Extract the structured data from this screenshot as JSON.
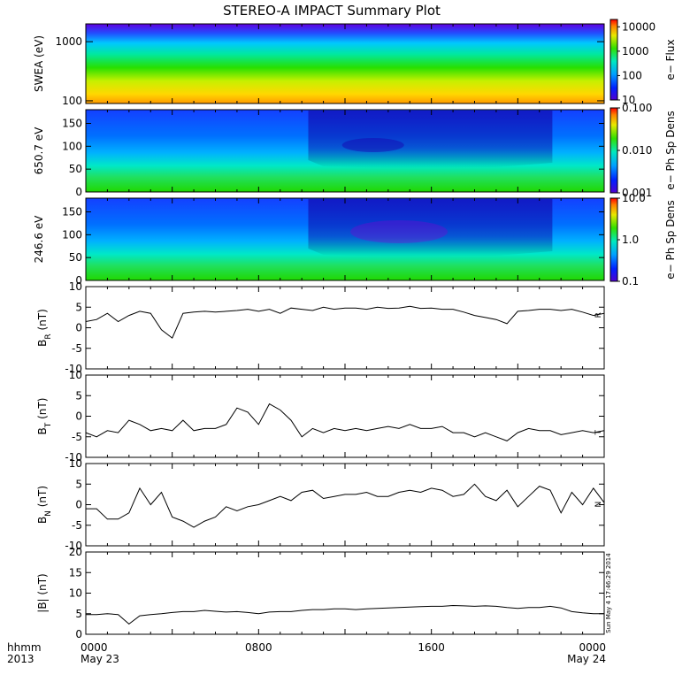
{
  "chart_data": {
    "type": "line",
    "title": "STEREO-A IMPACT Summary Plot",
    "colors": {
      "trace": "#000000",
      "frame": "#000000",
      "background": "#ffffff",
      "colorbar_top": "#ff0000",
      "colorbar_bottom": "#0000ff"
    },
    "x_axis": {
      "corner_labels": [
        "hhmm",
        "2013"
      ],
      "ticks": [
        {
          "hours": 0,
          "time": "0000",
          "date": "May 23"
        },
        {
          "hours": 8,
          "time": "0800",
          "date": ""
        },
        {
          "hours": 16,
          "time": "1600",
          "date": ""
        },
        {
          "hours": 24,
          "time": "0000",
          "date": "May 24"
        }
      ],
      "range_hours": [
        0,
        24
      ]
    },
    "spectrograms": [
      {
        "id": "swea",
        "type": "heatmap",
        "ylabel": "SWEA (eV)",
        "yscale": "log",
        "ylim": [
          90,
          2000
        ],
        "y_ticks": [
          "1000",
          "100"
        ],
        "colorbar": {
          "label": "e− Flux",
          "scale": "log",
          "range": [
            10,
            20000
          ],
          "ticks": [
            "10000",
            "1000",
            "100",
            "10"
          ]
        }
      },
      {
        "id": "pad650",
        "type": "heatmap",
        "ylabel": "650.7 eV",
        "yscale": "linear",
        "ylim": [
          0,
          180
        ],
        "y_ticks": [
          "150",
          "100",
          "50",
          "0"
        ],
        "colorbar": {
          "label": "e− Ph Sp Dens",
          "scale": "log",
          "range": [
            0.001,
            0.1
          ],
          "ticks": [
            "0.100",
            "0.010",
            "0.001"
          ]
        }
      },
      {
        "id": "pad246",
        "type": "heatmap",
        "ylabel": "246.6 eV",
        "yscale": "linear",
        "ylim": [
          0,
          180
        ],
        "y_ticks": [
          "150",
          "100",
          "50",
          "0"
        ],
        "colorbar": {
          "label": "e− Ph Sp Dens",
          "scale": "log",
          "range": [
            0.1,
            10
          ],
          "ticks": [
            "10.0",
            "1.0",
            "0.1"
          ]
        }
      }
    ],
    "line_panels": [
      {
        "id": "br",
        "ylabel": "B",
        "ylabel_sub": "R",
        "ylabel_unit": " (nT)",
        "ylim": [
          -10,
          10
        ],
        "y_ticks": [
          10,
          5,
          0,
          -5,
          -10
        ],
        "edge_label": "R",
        "x": [
          0,
          0.5,
          1,
          1.5,
          2,
          2.5,
          3,
          3.5,
          4,
          4.5,
          5,
          5.5,
          6,
          6.5,
          7,
          7.5,
          8,
          8.5,
          9,
          9.5,
          10,
          10.5,
          11,
          11.5,
          12,
          12.5,
          13,
          13.5,
          14,
          14.5,
          15,
          15.5,
          16,
          16.5,
          17,
          17.5,
          18,
          18.5,
          19,
          19.5,
          20,
          20.5,
          21,
          21.5,
          22,
          22.5,
          23,
          23.5,
          24
        ],
        "y": [
          1.5,
          2,
          3.5,
          1.5,
          3,
          4,
          3.5,
          -0.5,
          -2.5,
          3.5,
          3.8,
          4,
          3.8,
          4,
          4.2,
          4.5,
          4,
          4.5,
          3.5,
          4.8,
          4.5,
          4.2,
          5,
          4.5,
          4.8,
          4.8,
          4.5,
          5,
          4.7,
          4.8,
          5.2,
          4.7,
          4.8,
          4.5,
          4.5,
          3.8,
          3,
          2.5,
          2,
          1,
          4,
          4.2,
          4.5,
          4.5,
          4.2,
          4.5,
          3.8,
          3,
          3.5
        ]
      },
      {
        "id": "bt",
        "ylabel": "B",
        "ylabel_sub": "T",
        "ylabel_unit": " (nT)",
        "ylim": [
          -10,
          10
        ],
        "y_ticks": [
          10,
          5,
          0,
          -5,
          -10
        ],
        "edge_label": "T",
        "x": [
          0,
          0.5,
          1,
          1.5,
          2,
          2.5,
          3,
          3.5,
          4,
          4.5,
          5,
          5.5,
          6,
          6.5,
          7,
          7.5,
          8,
          8.5,
          9,
          9.5,
          10,
          10.5,
          11,
          11.5,
          12,
          12.5,
          13,
          13.5,
          14,
          14.5,
          15,
          15.5,
          16,
          16.5,
          17,
          17.5,
          18,
          18.5,
          19,
          19.5,
          20,
          20.5,
          21,
          21.5,
          22,
          22.5,
          23,
          23.5,
          24
        ],
        "y": [
          -4,
          -5,
          -3.5,
          -4,
          -1,
          -2,
          -3.5,
          -3,
          -3.5,
          -1,
          -3.5,
          -3,
          -3,
          -2,
          2,
          1,
          -2,
          3,
          1.5,
          -1,
          -5,
          -3,
          -4,
          -3,
          -3.5,
          -3,
          -3.5,
          -3,
          -2.5,
          -3,
          -2,
          -3,
          -3,
          -2.5,
          -4,
          -4,
          -5,
          -4,
          -5,
          -6,
          -4,
          -3,
          -3.5,
          -3.5,
          -4.5,
          -4,
          -3.5,
          -4,
          -3.5
        ]
      },
      {
        "id": "bn",
        "ylabel": "B",
        "ylabel_sub": "N",
        "ylabel_unit": " (nT)",
        "ylim": [
          -10,
          10
        ],
        "y_ticks": [
          10,
          5,
          0,
          -5,
          -10
        ],
        "edge_label": "N",
        "x": [
          0,
          0.5,
          1,
          1.5,
          2,
          2.5,
          3,
          3.5,
          4,
          4.5,
          5,
          5.5,
          6,
          6.5,
          7,
          7.5,
          8,
          8.5,
          9,
          9.5,
          10,
          10.5,
          11,
          11.5,
          12,
          12.5,
          13,
          13.5,
          14,
          14.5,
          15,
          15.5,
          16,
          16.5,
          17,
          17.5,
          18,
          18.5,
          19,
          19.5,
          20,
          20.5,
          21,
          21.5,
          22,
          22.5,
          23,
          23.5,
          24
        ],
        "y": [
          -1,
          -1,
          -3.5,
          -3.5,
          -2,
          4,
          0,
          3,
          -3,
          -4,
          -5.5,
          -4,
          -3,
          -0.5,
          -1.5,
          -0.5,
          0,
          1,
          2,
          1,
          3,
          3.5,
          1.5,
          2,
          2.5,
          2.5,
          3,
          2,
          2,
          3,
          3.5,
          3,
          4,
          3.5,
          2,
          2.5,
          5,
          2,
          1,
          3.5,
          -0.5,
          2,
          4.5,
          3.5,
          -2,
          3,
          0,
          4,
          0.5
        ]
      },
      {
        "id": "bmag",
        "ylabel": "|B| (nT)",
        "ylabel_sub": "",
        "ylabel_unit": "",
        "ylim": [
          0,
          20
        ],
        "y_ticks": [
          20,
          15,
          10,
          5,
          0
        ],
        "edge_label": "Sun May  4 17:46:29 2014",
        "x": [
          0,
          0.5,
          1,
          1.5,
          2,
          2.5,
          3,
          3.5,
          4,
          4.5,
          5,
          5.5,
          6,
          6.5,
          7,
          7.5,
          8,
          8.5,
          9,
          9.5,
          10,
          10.5,
          11,
          11.5,
          12,
          12.5,
          13,
          13.5,
          14,
          14.5,
          15,
          15.5,
          16,
          16.5,
          17,
          17.5,
          18,
          18.5,
          19,
          19.5,
          20,
          20.5,
          21,
          21.5,
          22,
          22.5,
          23,
          23.5,
          24
        ],
        "y": [
          4.8,
          4.8,
          5,
          4.8,
          2.5,
          4.5,
          4.8,
          5,
          5.3,
          5.5,
          5.5,
          5.8,
          5.6,
          5.4,
          5.5,
          5.3,
          5.0,
          5.4,
          5.5,
          5.5,
          5.8,
          6.0,
          6.0,
          6.2,
          6.2,
          6.0,
          6.2,
          6.3,
          6.4,
          6.5,
          6.6,
          6.7,
          6.8,
          6.8,
          7.0,
          6.9,
          6.8,
          6.9,
          6.8,
          6.5,
          6.3,
          6.5,
          6.5,
          6.8,
          6.4,
          5.5,
          5.2,
          5.0,
          5.0
        ]
      }
    ]
  }
}
